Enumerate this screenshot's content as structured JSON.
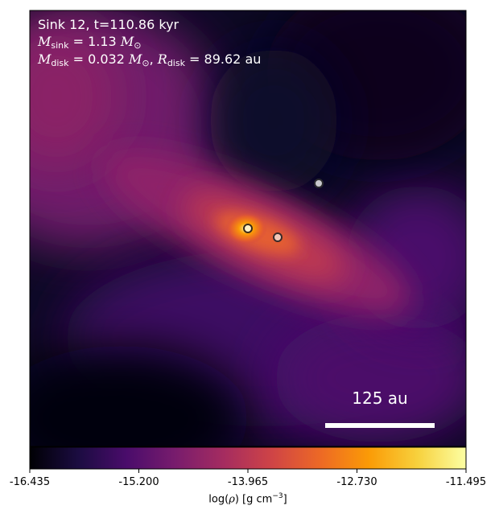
{
  "annotations": {
    "line1": "Sink 12, t=110.86 kyr",
    "sink_mass_symbol": "M",
    "sink_mass_sub": "sink",
    "sink_mass_value": " = 1.13 ",
    "sink_mass_unit": "M",
    "sink_mass_unit_sub": "⊙",
    "disk_mass_symbol": "M",
    "disk_mass_sub": "disk",
    "disk_mass_value": " = 0.032 ",
    "disk_mass_unit": "M",
    "disk_mass_unit_sub": "⊙",
    "separator": ", ",
    "disk_radius_symbol": "R",
    "disk_radius_sub": "disk",
    "disk_radius_value": " = 89.62 au"
  },
  "scale_bar": {
    "label": "125 au"
  },
  "colorbar": {
    "colormap": "inferno",
    "min": -16.435,
    "max": -11.495,
    "ticks": [
      "-16.435",
      "-15.200",
      "-13.965",
      "-12.730",
      "-11.495"
    ],
    "label_prefix": "log(",
    "label_rho": "ρ",
    "label_mid": ") [g cm",
    "label_exp": "−3",
    "label_suffix": "]",
    "stops": [
      "#000004",
      "#1b0c41",
      "#4a0c6b",
      "#781c6d",
      "#a52c60",
      "#cf4446",
      "#ed6925",
      "#fb9b06",
      "#f7d13d",
      "#fcffa4"
    ]
  },
  "sinks": [
    {
      "name": "sink-primary",
      "fill": "#fff3c8",
      "stroke": "#3a2a1a"
    },
    {
      "name": "sink-secondary",
      "fill": "#f2c8b8",
      "stroke": "#3a2a2a"
    },
    {
      "name": "sink-tertiary",
      "fill": "#c8c8cc",
      "stroke": "#2a2a2e"
    }
  ]
}
